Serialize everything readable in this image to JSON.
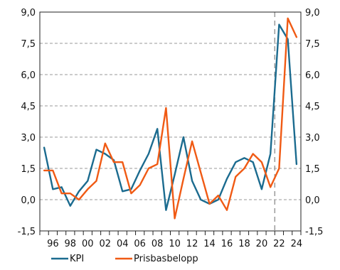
{
  "chart_data": {
    "type": "line",
    "x": [
      1995,
      1996,
      1997,
      1998,
      1999,
      2000,
      2001,
      2002,
      2003,
      2004,
      2005,
      2006,
      2007,
      2008,
      2009,
      2010,
      2011,
      2012,
      2013,
      2014,
      2015,
      2016,
      2017,
      2018,
      2019,
      2020,
      2021,
      2022,
      2023,
      2024
    ],
    "x_tick_labels": [
      "96",
      "98",
      "00",
      "02",
      "04",
      "06",
      "08",
      "10",
      "12",
      "14",
      "16",
      "18",
      "20",
      "22",
      "24"
    ],
    "x_tick_years": [
      1996,
      1998,
      2000,
      2002,
      2004,
      2006,
      2008,
      2010,
      2012,
      2014,
      2016,
      2018,
      2020,
      2022,
      2024
    ],
    "y_tick_labels": [
      "-1,5",
      "0,0",
      "1,5",
      "3,0",
      "4,5",
      "6,0",
      "7,5",
      "9,0"
    ],
    "y_ticks": [
      -1.5,
      0,
      1.5,
      3,
      4.5,
      6,
      7.5,
      9
    ],
    "ylim": [
      -1.5,
      9.0
    ],
    "xlim": [
      1994.5,
      2024.5
    ],
    "vertical_line_x": 2021.5,
    "grid": true,
    "legend_position": "bottom",
    "series": [
      {
        "name": "KPI",
        "color": "#1b6b8f",
        "values": [
          2.5,
          0.5,
          0.6,
          -0.3,
          0.4,
          0.9,
          2.4,
          2.2,
          1.9,
          0.4,
          0.5,
          1.4,
          2.2,
          3.4,
          -0.5,
          1.2,
          3.0,
          0.9,
          0.0,
          -0.2,
          0.0,
          1.0,
          1.8,
          2.0,
          1.8,
          0.5,
          2.2,
          8.4,
          7.7,
          1.7
        ]
      },
      {
        "name": "Prisbasbelopp",
        "color": "#f05a14",
        "values": [
          1.4,
          1.4,
          0.3,
          0.3,
          0.0,
          0.5,
          0.9,
          2.7,
          1.8,
          1.8,
          0.3,
          0.7,
          1.5,
          1.7,
          4.4,
          -0.9,
          1.0,
          2.8,
          1.3,
          -0.2,
          0.2,
          -0.5,
          1.1,
          1.5,
          2.2,
          1.8,
          0.6,
          1.5,
          8.7,
          7.8
        ]
      }
    ]
  }
}
